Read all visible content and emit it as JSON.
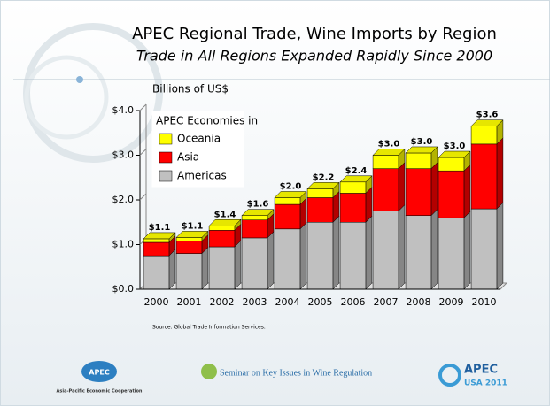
{
  "chart_data": {
    "type": "stacked_bar",
    "title": "APEC Regional Trade, Wine Imports by Region",
    "subtitle": "Trade in All Regions Expanded Rapidly Since 2000",
    "y_label": "Billions of US$",
    "legend_title": "APEC Economies in",
    "source": "Source: Global Trade Information Services.",
    "categories": [
      "2000",
      "2001",
      "2002",
      "2003",
      "2004",
      "2005",
      "2006",
      "2007",
      "2008",
      "2009",
      "2010"
    ],
    "series": [
      {
        "name": "Americas",
        "color": "#c0c0c0",
        "values": [
          0.75,
          0.8,
          0.95,
          1.15,
          1.35,
          1.5,
          1.5,
          1.75,
          1.65,
          1.6,
          1.8
        ]
      },
      {
        "name": "Asia",
        "color": "#ff0000",
        "values": [
          0.3,
          0.28,
          0.37,
          0.4,
          0.55,
          0.55,
          0.65,
          0.95,
          1.05,
          1.05,
          1.45
        ]
      },
      {
        "name": "Oceania",
        "color": "#ffff00",
        "values": [
          0.08,
          0.08,
          0.1,
          0.1,
          0.15,
          0.2,
          0.25,
          0.3,
          0.35,
          0.3,
          0.4
        ]
      }
    ],
    "value_labels": [
      "$1.1",
      "$1.1",
      "$1.4",
      "$1.6",
      "$2.0",
      "$2.2",
      "$2.4",
      "$3.0",
      "$3.0",
      "$3.0",
      "$3.6"
    ],
    "ylim": [
      0,
      4
    ],
    "yticks": [
      {
        "value": 0,
        "label": "$0.0"
      },
      {
        "value": 1,
        "label": "$1.0"
      },
      {
        "value": 2,
        "label": "$2.0"
      },
      {
        "value": 3,
        "label": "$3.0"
      },
      {
        "value": 4,
        "label": "$4.0"
      }
    ],
    "legend_position": "upper left"
  },
  "footer": {
    "left_logo": "APEC",
    "left_caption": "Asia-Pacific Economic Cooperation",
    "center": "Seminar on Key Issues in Wine Regulation",
    "right_logo": "APEC",
    "right_caption": "USA 2011"
  }
}
